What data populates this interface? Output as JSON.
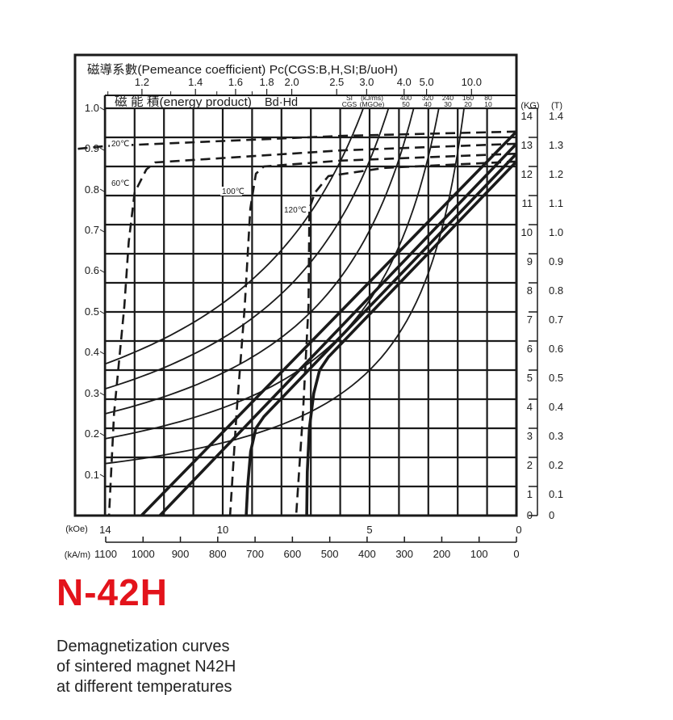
{
  "chart_data": {
    "type": "line",
    "title": "N-42H",
    "caption": [
      "Demagnetization curves",
      "of sintered magnet N42H",
      "at different temperatures"
    ],
    "grid": true,
    "x_axis": {
      "label_kOe": "(kOe)",
      "ticks_kOe": [
        14,
        10,
        5,
        0
      ],
      "label_kAm": "(kA/m)",
      "ticks_kAm": [
        1100,
        1000,
        900,
        800,
        700,
        600,
        500,
        400,
        300,
        200,
        100,
        0
      ],
      "range_kOe": [
        14,
        0
      ]
    },
    "y_axis_right": {
      "label_kG": "(KG)",
      "ticks_kG": [
        "0",
        "1",
        "2",
        "3",
        "4",
        "5",
        "6",
        "7",
        "8",
        "9",
        "10",
        "11",
        "12",
        "13",
        "14"
      ],
      "label_T": "(T)",
      "ticks_T": [
        "0",
        "0.1",
        "0.2",
        "0.3",
        "0.4",
        "0.5",
        "0.6",
        "0.7",
        "0.8",
        "0.9",
        "1.0",
        "1.1",
        "1.2",
        "1.3",
        "1.4"
      ],
      "range_kG": [
        0,
        14
      ]
    },
    "y_axis_left": {
      "ticks": [
        "1.0",
        "0.9",
        "0.8",
        "0.7",
        "0.6",
        "0.5",
        "0.4",
        "0.3",
        "0.2",
        "0.1"
      ]
    },
    "permeance": {
      "label": "磁導系數(Pemeance coefficient) Pc(CGS:B,H,SI;B/uoH)",
      "ticks": [
        "1.2",
        "1.4",
        "1.6",
        "1.8",
        "2.0",
        "2.5",
        "3.0",
        "4.0",
        "5.0",
        "10.0"
      ]
    },
    "energy_product": {
      "label": "磁 能 積(energy product)",
      "symbol": "Bd·Hd",
      "si_label": "SI",
      "si_unit": "(kJ/ms)",
      "cgs_label": "CGS",
      "cgs_unit": "(MGOe)",
      "si_values": [
        "400",
        "320",
        "240",
        "160",
        "80"
      ],
      "cgs_values": [
        "50",
        "40",
        "30",
        "20",
        "10"
      ]
    },
    "series": [
      {
        "name": "20℃",
        "normal": [
          [
            0,
            13.2
          ],
          [
            12.77,
            0
          ]
        ],
        "intrinsic": [
          [
            0,
            13.2
          ],
          [
            6,
            13.05
          ],
          [
            14,
            12.7
          ],
          [
            15,
            12.6
          ]
        ]
      },
      {
        "name": "60℃",
        "normal": [
          [
            0,
            12.78
          ],
          [
            12.14,
            0
          ]
        ],
        "intrinsic": [
          [
            0,
            12.78
          ],
          [
            6,
            12.55
          ],
          [
            12.3,
            12.14
          ],
          [
            12.6,
            11.9
          ],
          [
            13.0,
            11.1
          ],
          [
            13.2,
            9.4
          ],
          [
            13.35,
            7.2
          ],
          [
            13.7,
            3.5
          ],
          [
            13.87,
            0
          ]
        ]
      },
      {
        "name": "100℃",
        "normal": [
          [
            0,
            12.44
          ],
          [
            8.6,
            3.4
          ],
          [
            8.87,
            3.0
          ],
          [
            9.05,
            2.2
          ],
          [
            9.15,
            1.0
          ],
          [
            9.2,
            0
          ]
        ],
        "intrinsic": [
          [
            0,
            12.44
          ],
          [
            6,
            12.2
          ],
          [
            8.6,
            12.0
          ],
          [
            8.87,
            11.75
          ],
          [
            9.06,
            10.55
          ],
          [
            9.25,
            7.2
          ],
          [
            9.53,
            3.5
          ],
          [
            9.75,
            0
          ]
        ]
      },
      {
        "name": "120℃",
        "normal": [
          [
            0,
            12.17
          ],
          [
            6.4,
            5.45
          ],
          [
            6.7,
            5.0
          ],
          [
            6.9,
            4.2
          ],
          [
            7.05,
            3.0
          ],
          [
            7.12,
            1.5
          ],
          [
            7.14,
            0
          ]
        ],
        "intrinsic": [
          [
            0,
            12.17
          ],
          [
            4.5,
            11.95
          ],
          [
            6.4,
            11.67
          ],
          [
            6.86,
            11.1
          ],
          [
            7.05,
            10.55
          ],
          [
            7.08,
            7.2
          ],
          [
            7.27,
            3.5
          ],
          [
            7.5,
            0
          ]
        ]
      }
    ]
  }
}
